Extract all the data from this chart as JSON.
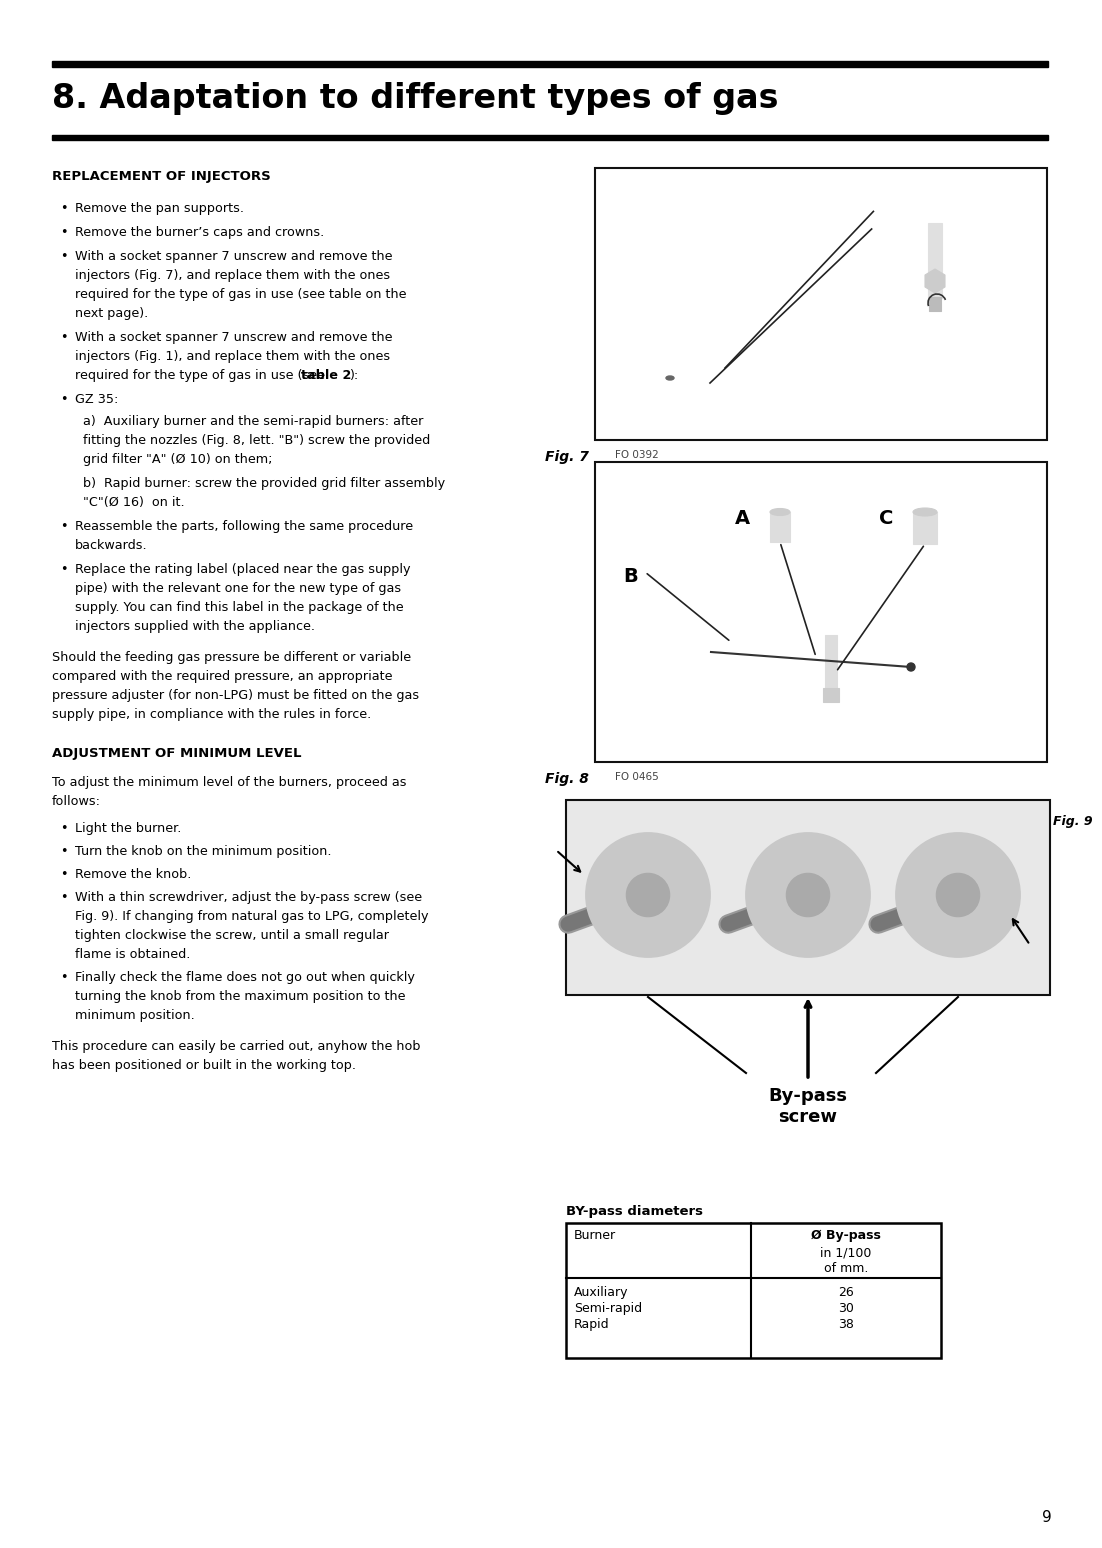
{
  "title": "8. Adaptation to different types of gas",
  "page_number": "9",
  "bg": "#ffffff",
  "section1_heading": "REPLACEMENT OF INJECTORS",
  "bullet1": "Remove the pan supports.",
  "bullet2": "Remove the burner’s caps and crowns.",
  "bullet3a": "With a socket spanner 7 unscrew and remove the",
  "bullet3b": "injectors (Fig. 7), and replace them with the ones",
  "bullet3c": "required for the type of gas in use (see table on the",
  "bullet3d": "next page).",
  "bullet4a": "With a socket spanner 7 unscrew and remove the",
  "bullet4b": "injectors (Fig. 1), and replace them with the ones",
  "bullet4c_pre": "required for the type of gas in use (see ",
  "bullet4c_bold": "table 2",
  "bullet4c_post": "):",
  "bullet5": "GZ 35:",
  "gz35_a1": "a)  Auxiliary burner and the semi-rapid burners: after",
  "gz35_a2": "fitting the nozzles (Fig. 8, lett. \"B\") screw the provided",
  "gz35_a3": "grid filter \"A\" (Ø 10) on them;",
  "gz35_b1": "b)  Rapid burner: screw the provided grid filter assembly",
  "gz35_b2": "\"C\"(Ø 16)  on it.",
  "bullet6a": "Reassemble the parts, following the same procedure",
  "bullet6b": "backwards.",
  "bullet7a": "Replace the rating label (placed near the gas supply",
  "bullet7b": "pipe) with the relevant one for the new type of gas",
  "bullet7c": "supply. You can find this label in the package of the",
  "bullet7d": "injectors supplied with the appliance.",
  "para1a": "Should the feeding gas pressure be different or variable",
  "para1b": "compared with the required pressure, an appropriate",
  "para1c": "pressure adjuster (for non-LPG) must be fitted on the gas",
  "para1d": "supply pipe, in compliance with the rules in force.",
  "section2_heading": "ADJUSTMENT OF MINIMUM LEVEL",
  "sec2_para1": "To adjust the minimum level of the burners, proceed as",
  "sec2_para2": "follows:",
  "s2b1": "Light the burner.",
  "s2b2": "Turn the knob on the minimum position.",
  "s2b3": "Remove the knob.",
  "s2b4a": "With a thin screwdriver, adjust the by-pass screw (see",
  "s2b4b": "Fig. 9). If changing from natural gas to LPG, completely",
  "s2b4c": "tighten clockwise the screw, until a small regular",
  "s2b4d": "flame is obtained.",
  "s2b5a": "Finally check the flame does not go out when quickly",
  "s2b5b": "turning the knob from the maximum position to the",
  "s2b5c": "minimum position.",
  "sec2_para3a": "This procedure can easily be carried out, anyhow the hob",
  "sec2_para3b": "has been positioned or built in the working top.",
  "fig7_label": "Fig. 7",
  "fig7_code": "FO 0392",
  "fig8_label": "Fig. 8",
  "fig8_code": "FO 0465",
  "fig9_label": "Fig. 9",
  "bypass_text": "By-pass\nscrew",
  "table_title": "BY-pass diameters",
  "col1_header": "Burner",
  "col2_header": "Ø By-pass",
  "col2_sub1": "in 1/100",
  "col2_sub2": "of mm.",
  "row1": [
    "Auxiliary",
    "26"
  ],
  "row2": [
    "Semi-rapid",
    "30"
  ],
  "row3": [
    "Rapid",
    "38"
  ]
}
